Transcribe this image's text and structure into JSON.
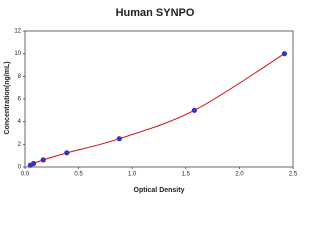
{
  "chart_data": {
    "type": "scatter",
    "title": "Human SYNPO",
    "x_label": "Optical Density",
    "y_label": "Concentration(ng/mL)",
    "x": [
      0.05,
      0.08,
      0.17,
      0.39,
      0.88,
      1.58,
      2.42
    ],
    "values": [
      0.16,
      0.31,
      0.63,
      1.25,
      2.5,
      5,
      10
    ],
    "marker_color": "#3a2fc0",
    "line_color": "#cc1111",
    "xlim": [
      0,
      2.5
    ],
    "xticks": [
      {
        "value": 0,
        "label": "0.0"
      },
      0.5,
      {
        "value": 1,
        "label": "1.0"
      },
      1.5,
      {
        "value": 2,
        "label": "2.0"
      },
      2.5
    ],
    "ylim": [
      0,
      12
    ],
    "yticks": [
      0,
      2,
      4,
      6,
      8,
      10,
      12
    ]
  }
}
